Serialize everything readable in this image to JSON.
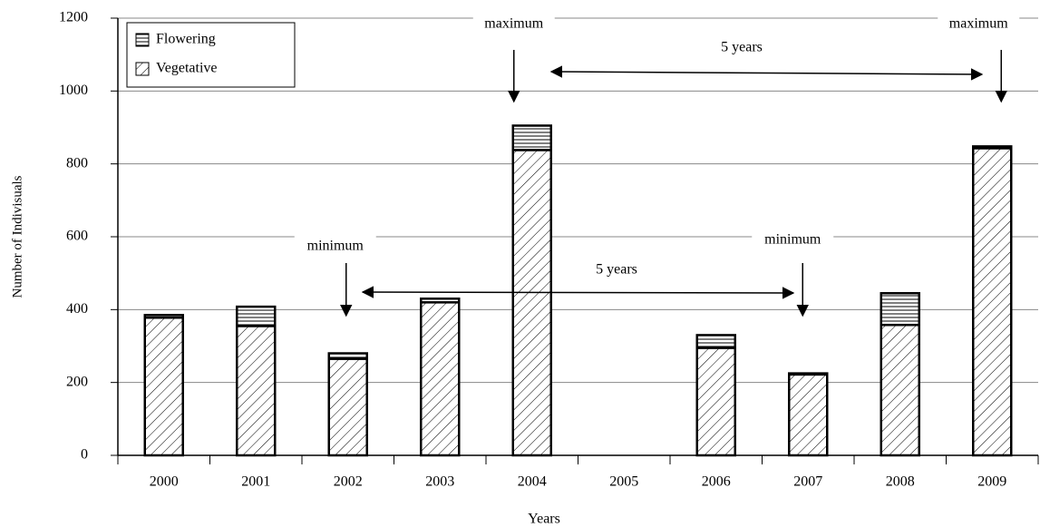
{
  "chart_data": {
    "type": "bar",
    "stacked": true,
    "x_label": "Years",
    "y_label": "Number of Indivisuals",
    "categories": [
      "2000",
      "2001",
      "2002",
      "2003",
      "2004",
      "2005",
      "2006",
      "2007",
      "2008",
      "2009"
    ],
    "series": [
      {
        "name": "Flowering",
        "color": "#000000",
        "values": [
          7,
          53,
          15,
          10,
          67,
          null,
          35,
          3,
          87,
          5
        ]
      },
      {
        "name": "Vegetative",
        "color": "#000000",
        "values": [
          378,
          355,
          265,
          420,
          838,
          null,
          295,
          222,
          358,
          843
        ]
      }
    ],
    "ylim": [
      0,
      1200
    ],
    "yticks": [
      0,
      200,
      400,
      600,
      800,
      1000,
      1200
    ],
    "grid": true,
    "legend": "top-left",
    "annotations": [
      "maximum",
      "maximum",
      "minimum",
      "minimum",
      "5 years",
      "5 years"
    ]
  }
}
